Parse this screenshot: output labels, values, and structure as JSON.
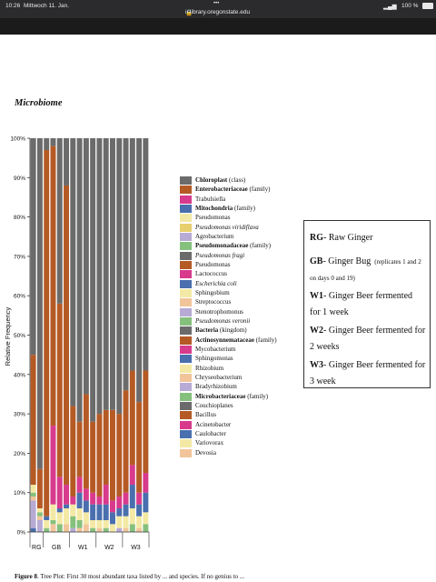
{
  "status_bar": {
    "time": "10:26",
    "date": "Mittwoch 11. Jan.",
    "url": "ir.library.oregonstate.edu",
    "battery": "100 %"
  },
  "page_title": "Microbiome",
  "chart_data": {
    "type": "bar",
    "stacked": true,
    "ylabel": "Relative Frequency",
    "ylim": [
      0,
      100
    ],
    "yticks": [
      "0%",
      "10%",
      "20%",
      "30%",
      "40%",
      "50%",
      "60%",
      "70%",
      "80%",
      "90%",
      "100%"
    ],
    "groups": [
      {
        "label": "RG",
        "n": 2
      },
      {
        "label": "GB",
        "n": 4
      },
      {
        "label": "W1",
        "n": 4
      },
      {
        "label": "W2",
        "n": 4
      },
      {
        "label": "W3",
        "n": 4
      }
    ],
    "colors": {
      "Chloroplast": "#6b6b6b",
      "Enterobacteriaceae": "#b55a25",
      "Trabulsiella": "#d83a8c",
      "Mitochondria": "#4a6fae",
      "Pseudomonas": "#f3e9a4",
      "Pseudomonas viridiflava": "#e8cf6e",
      "Agrobacterium": "#b7aad4",
      "Pseudomonadaceae": "#86c07d",
      "Pseudomonas fragi": "#6b6b6b",
      "Pseudomonas2": "#b55a25",
      "Lactococcus": "#d83a8c",
      "Escherichia coli": "#4a6fae",
      "Sphingobium": "#f3e9a4",
      "Streptococcus": "#f2c49a",
      "Stenotrophomonus": "#b7aad4",
      "Pseudomonas veronii": "#86c07d",
      "Bacteria": "#6b6b6b",
      "Actinosynnemataceae": "#b55a25",
      "Mycobacterium": "#d83a8c",
      "Sphingomonas": "#4a6fae",
      "Rhizobium": "#f3e9a4",
      "Chryseobacterium": "#f2c49a",
      "Bradyrhizobium": "#b7aad4",
      "Microbacteriaceae": "#86c07d",
      "Couchioplanes": "#6b6b6b",
      "Bacillus": "#b55a25",
      "Acinetobacter": "#d83a8c",
      "Caulobacter": "#4a6fae",
      "Variovorax": "#f3e9a4",
      "Devosia": "#f2c49a"
    },
    "bars": [
      {
        "group": "RG",
        "Enterobacteriaceae": 33,
        "Agrobacterium": 7,
        "Pseudomonas": 2,
        "Streptococcus": 1,
        "Pseudomonadaceae": 1,
        "Caulobacter": 1,
        "Chloroplast": 55
      },
      {
        "group": "RG",
        "Enterobacteriaceae": 10,
        "Agrobacterium": 3,
        "Pseudomonas": 1,
        "Streptococcus": 1,
        "Pseudomonadaceae": 1,
        "Chloroplast": 84
      },
      {
        "group": "GB",
        "Enterobacteriaceae": 93,
        "Pseudomonas": 2,
        "Mitochondria": 1,
        "Pseudomonadaceae": 1,
        "Chloroplast": 3
      },
      {
        "group": "GB",
        "Enterobacteriaceae": 71,
        "Trabulsiella": 20,
        "Pseudomonas": 4,
        "Streptococcus": 2,
        "Pseudomonadaceae": 1,
        "Chloroplast": 2
      },
      {
        "group": "GB",
        "Enterobacteriaceae": 44,
        "Trabulsiella": 8,
        "Pseudomonas": 3,
        "Pseudomonadaceae": 2,
        "Mitochondria": 1,
        "Chloroplast": 42
      },
      {
        "group": "GB",
        "Enterobacteriaceae": 76,
        "Trabulsiella": 5,
        "Pseudomonas": 4,
        "Streptococcus": 2,
        "Mitochondria": 1,
        "Chloroplast": 12
      },
      {
        "group": "W1",
        "Enterobacteriaceae": 23,
        "Trabulsiella": 2,
        "Pseudomonas": 3,
        "Pseudomonadaceae": 3,
        "Agrobacterium": 1,
        "Chloroplast": 68
      },
      {
        "group": "W1",
        "Enterobacteriaceae": 14,
        "Trabulsiella": 4,
        "Mitochondria": 4,
        "Pseudomonas": 3,
        "Pseudomonadaceae": 2,
        "Streptococcus": 1,
        "Chloroplast": 72
      },
      {
        "group": "W1",
        "Enterobacteriaceae": 24,
        "Trabulsiella": 3,
        "Mitochondria": 3,
        "Pseudomonas": 3,
        "Streptococcus": 2,
        "Chloroplast": 65
      },
      {
        "group": "W1",
        "Enterobacteriaceae": 18,
        "Trabulsiella": 3,
        "Mitochondria": 4,
        "Pseudomonas": 2,
        "Pseudomonadaceae": 1,
        "Chloroplast": 72
      },
      {
        "group": "W2",
        "Enterobacteriaceae": 21,
        "Trabulsiella": 2,
        "Mitochondria": 4,
        "Pseudomonas": 2,
        "Streptococcus": 1,
        "Chloroplast": 70
      },
      {
        "group": "W2",
        "Enterobacteriaceae": 19,
        "Trabulsiella": 5,
        "Mitochondria": 4,
        "Pseudomonas": 2,
        "Pseudomonadaceae": 1,
        "Chloroplast": 69
      },
      {
        "group": "W2",
        "Enterobacteriaceae": 23,
        "Trabulsiella": 3,
        "Mitochondria": 3,
        "Pseudomonas": 2,
        "Chloroplast": 69
      },
      {
        "group": "W2",
        "Enterobacteriaceae": 21,
        "Trabulsiella": 3,
        "Mitochondria": 2,
        "Pseudomonas": 3,
        "Agrobacterium": 1,
        "Chloroplast": 70
      },
      {
        "group": "W3",
        "Enterobacteriaceae": 26,
        "Trabulsiella": 3,
        "Mitochondria": 3,
        "Pseudomonas": 3,
        "Streptococcus": 1,
        "Chloroplast": 64
      },
      {
        "group": "W3",
        "Enterobacteriaceae": 24,
        "Trabulsiella": 5,
        "Mitochondria": 6,
        "Pseudomonas": 4,
        "Pseudomonadaceae": 2,
        "Chloroplast": 59
      },
      {
        "group": "W3",
        "Enterobacteriaceae": 23,
        "Trabulsiella": 3,
        "Mitochondria": 3,
        "Pseudomonas": 3,
        "Streptococcus": 1,
        "Chloroplast": 67
      },
      {
        "group": "W3",
        "Enterobacteriaceae": 26,
        "Trabulsiella": 5,
        "Mitochondria": 5,
        "Pseudomonas": 3,
        "Pseudomonadaceae": 2,
        "Chloroplast": 59
      }
    ],
    "stack_order": [
      "Caulobacter",
      "Agrobacterium",
      "Streptococcus",
      "Pseudomonadaceae",
      "Pseudomonas",
      "Mitochondria",
      "Trabulsiella",
      "Enterobacteriaceae",
      "Chloroplast"
    ]
  },
  "legend": [
    {
      "name": "Chloroplast",
      "suffix": " (class)",
      "bold": true,
      "italic": false,
      "color": "#6b6b6b"
    },
    {
      "name": "Enterobacteriaceae",
      "suffix": " (family)",
      "bold": true,
      "italic": false,
      "color": "#b55a25"
    },
    {
      "name": "Trabulsiella",
      "suffix": "",
      "bold": false,
      "italic": false,
      "color": "#d83a8c"
    },
    {
      "name": "Mitochondria",
      "suffix": " (family)",
      "bold": true,
      "italic": false,
      "color": "#4a6fae"
    },
    {
      "name": "Pseudomonas",
      "suffix": "",
      "bold": false,
      "italic": false,
      "color": "#f3e9a4"
    },
    {
      "name": "Pseudomonas viridiflava",
      "suffix": "",
      "bold": false,
      "italic": true,
      "color": "#e8cf6e"
    },
    {
      "name": "Agrobacterium",
      "suffix": "",
      "bold": false,
      "italic": false,
      "color": "#b7aad4"
    },
    {
      "name": "Pseudomonadaceae",
      "suffix": " (family)",
      "bold": true,
      "italic": false,
      "color": "#86c07d"
    },
    {
      "name": "Pseudomonas fragi",
      "suffix": "",
      "bold": false,
      "italic": true,
      "color": "#6b6b6b"
    },
    {
      "name": "Pseudomonas",
      "suffix": "",
      "bold": false,
      "italic": false,
      "color": "#b55a25"
    },
    {
      "name": "Lactococcus",
      "suffix": "",
      "bold": false,
      "italic": false,
      "color": "#d83a8c"
    },
    {
      "name": "Escherichia coli",
      "suffix": "",
      "bold": false,
      "italic": true,
      "color": "#4a6fae"
    },
    {
      "name": "Sphingobium",
      "suffix": "",
      "bold": false,
      "italic": false,
      "color": "#f3e9a4"
    },
    {
      "name": "Streptococcus",
      "suffix": "",
      "bold": false,
      "italic": false,
      "color": "#f2c49a"
    },
    {
      "name": "Stenotrophomonus",
      "suffix": "",
      "bold": false,
      "italic": false,
      "color": "#b7aad4"
    },
    {
      "name": "Pseudomonas veronii",
      "suffix": "",
      "bold": false,
      "italic": true,
      "color": "#86c07d"
    },
    {
      "name": "Bacteria",
      "suffix": " (kingdom)",
      "bold": true,
      "italic": false,
      "color": "#6b6b6b"
    },
    {
      "name": "Actinosynnemataceae",
      "suffix": " (family)",
      "bold": true,
      "italic": false,
      "color": "#b55a25"
    },
    {
      "name": "Mycobacterium",
      "suffix": "",
      "bold": false,
      "italic": false,
      "color": "#d83a8c"
    },
    {
      "name": "Sphingomonas",
      "suffix": "",
      "bold": false,
      "italic": false,
      "color": "#4a6fae"
    },
    {
      "name": "Rhizobium",
      "suffix": "",
      "bold": false,
      "italic": false,
      "color": "#f3e9a4"
    },
    {
      "name": "Chryseobacterium",
      "suffix": "",
      "bold": false,
      "italic": false,
      "color": "#f2c49a"
    },
    {
      "name": "Bradyrhizobium",
      "suffix": "",
      "bold": false,
      "italic": false,
      "color": "#b7aad4"
    },
    {
      "name": "Microbacteriaceae",
      "suffix": " (family)",
      "bold": true,
      "italic": false,
      "color": "#86c07d"
    },
    {
      "name": "Couchioplanes",
      "suffix": "",
      "bold": false,
      "italic": false,
      "color": "#6b6b6b"
    },
    {
      "name": "Bacillus",
      "suffix": "",
      "bold": false,
      "italic": false,
      "color": "#b55a25"
    },
    {
      "name": "Acinetobacter",
      "suffix": "",
      "bold": false,
      "italic": false,
      "color": "#d83a8c"
    },
    {
      "name": "Caulobacter",
      "suffix": "",
      "bold": false,
      "italic": false,
      "color": "#4a6fae"
    },
    {
      "name": "Variovorax",
      "suffix": "",
      "bold": false,
      "italic": false,
      "color": "#f3e9a4"
    },
    {
      "name": "Devosia",
      "suffix": "",
      "bold": false,
      "italic": false,
      "color": "#f2c49a"
    }
  ],
  "key": [
    {
      "code": "RG",
      "text": "- Raw Ginger",
      "sub": ""
    },
    {
      "code": "GB",
      "text": "- Ginger Bug",
      "sub": "(replicates 1 and 2 on days 0 and 19)"
    },
    {
      "code": "W1",
      "text": "- Ginger Beer fermented for 1 week",
      "sub": ""
    },
    {
      "code": "W2",
      "text": "- Ginger Beer fermented for 2 weeks",
      "sub": ""
    },
    {
      "code": "W3",
      "text": "- Ginger Beer fermented for 3 week",
      "sub": ""
    }
  ],
  "footer": {
    "label": "Figure 8",
    "text": ". Tree Plot: First 30 most abundant taxa listed by ... and species. If no genius to ..."
  }
}
